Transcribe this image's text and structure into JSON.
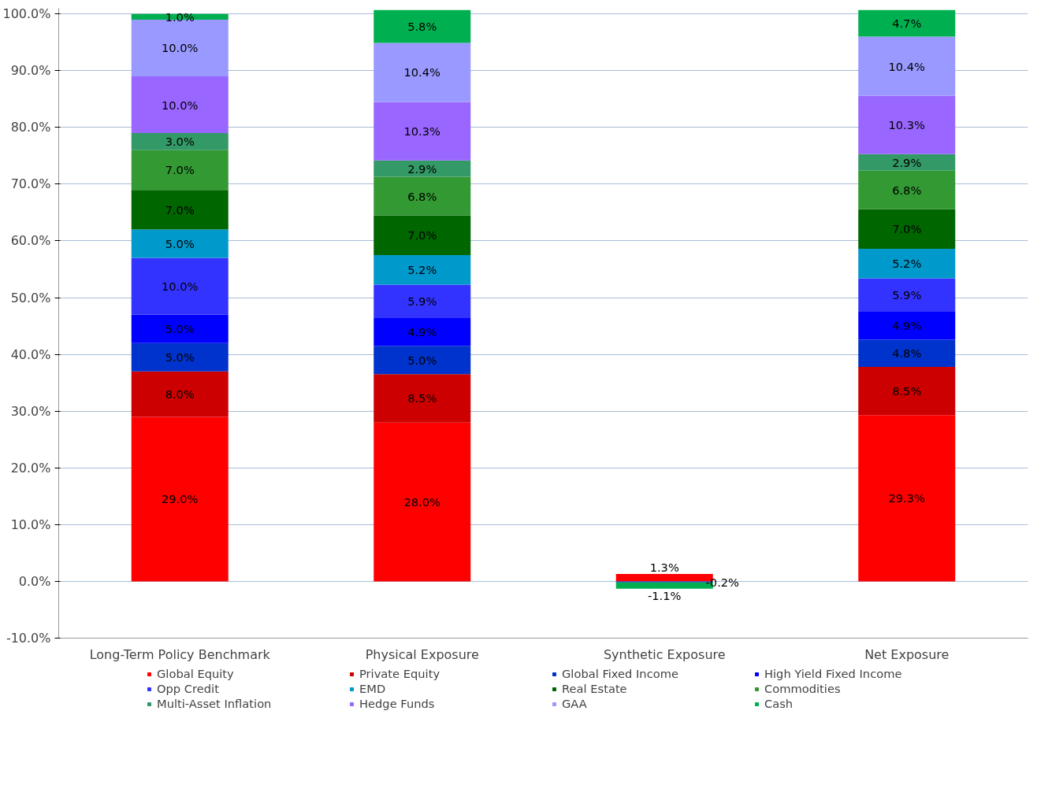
{
  "chart_data": {
    "type": "bar",
    "stacked": true,
    "categories": [
      "Long-Term Policy Benchmark",
      "Physical Exposure",
      "Synthetic Exposure",
      "Net Exposure"
    ],
    "ylim": [
      -10,
      101
    ],
    "yticks": [
      {
        "value": -10,
        "label": "-10.0%"
      },
      {
        "value": 0,
        "label": "0.0%"
      },
      {
        "value": 10,
        "label": "10.0%"
      },
      {
        "value": 20,
        "label": "20.0%"
      },
      {
        "value": 30,
        "label": "30.0%"
      },
      {
        "value": 40,
        "label": "40.0%"
      },
      {
        "value": 50,
        "label": "50.0%"
      },
      {
        "value": 60,
        "label": "60.0%"
      },
      {
        "value": 70,
        "label": "70.0%"
      },
      {
        "value": 80,
        "label": "80.0%"
      },
      {
        "value": 90,
        "label": "90.0%"
      },
      {
        "value": 100,
        "label": "100.0%"
      }
    ],
    "grid": "y",
    "legend": "bottom",
    "series": [
      {
        "name": "Global Equity",
        "color": "#ff0000",
        "values": [
          29.0,
          28.0,
          1.3,
          29.3
        ],
        "value_labels": [
          "29.0%",
          "28.0%",
          "1.3%",
          "29.3%"
        ]
      },
      {
        "name": "Private Equity",
        "color": "#cc0000",
        "values": [
          8.0,
          8.5,
          null,
          8.5
        ],
        "value_labels": [
          "8.0%",
          "8.5%",
          null,
          "8.5%"
        ]
      },
      {
        "name": "Global Fixed Income",
        "color": "#0033cc",
        "values": [
          5.0,
          5.0,
          -0.2,
          4.8
        ],
        "value_labels": [
          "5.0%",
          "5.0%",
          "-0.2%",
          "4.8%"
        ]
      },
      {
        "name": "High Yield Fixed Income",
        "color": "#0000ff",
        "values": [
          5.0,
          4.9,
          null,
          4.9
        ],
        "value_labels": [
          "5.0%",
          "4.9%",
          null,
          "4.9%"
        ]
      },
      {
        "name": "Opp Credit",
        "color": "#3333ff",
        "values": [
          10.0,
          5.9,
          null,
          5.9
        ],
        "value_labels": [
          "10.0%",
          "5.9%",
          null,
          "5.9%"
        ]
      },
      {
        "name": "EMD",
        "color": "#0099cc",
        "values": [
          5.0,
          5.2,
          null,
          5.2
        ],
        "value_labels": [
          "5.0%",
          "5.2%",
          null,
          "5.2%"
        ]
      },
      {
        "name": "Real Estate",
        "color": "#006600",
        "values": [
          7.0,
          7.0,
          null,
          7.0
        ],
        "value_labels": [
          "7.0%",
          "7.0%",
          null,
          "7.0%"
        ]
      },
      {
        "name": "Commodities",
        "color": "#339933",
        "values": [
          7.0,
          6.8,
          null,
          6.8
        ],
        "value_labels": [
          "7.0%",
          "6.8%",
          null,
          "6.8%"
        ]
      },
      {
        "name": "Multi-Asset Inflation",
        "color": "#339966",
        "values": [
          3.0,
          2.9,
          null,
          2.9
        ],
        "value_labels": [
          "3.0%",
          "2.9%",
          null,
          "2.9%"
        ]
      },
      {
        "name": "Hedge Funds",
        "color": "#9966ff",
        "values": [
          10.0,
          10.3,
          null,
          10.3
        ],
        "value_labels": [
          "10.0%",
          "10.3%",
          null,
          "10.3%"
        ]
      },
      {
        "name": "GAA",
        "color": "#9999ff",
        "values": [
          10.0,
          10.4,
          null,
          10.4
        ],
        "value_labels": [
          "10.0%",
          "10.4%",
          null,
          "10.4%"
        ]
      },
      {
        "name": "Cash",
        "color": "#00b050",
        "values": [
          1.0,
          5.8,
          -1.1,
          4.7
        ],
        "value_labels": [
          "1.0%",
          "5.8%",
          "-1.1%",
          "4.7%"
        ]
      }
    ]
  }
}
